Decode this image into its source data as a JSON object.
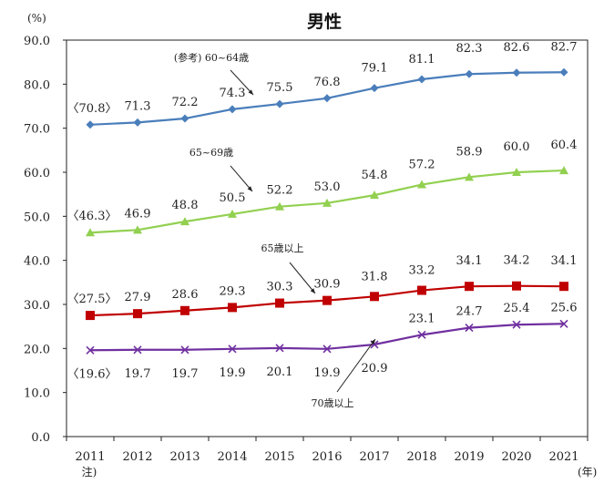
{
  "chart_data": {
    "type": "line",
    "title": "男性",
    "ylabel": "(%)",
    "xlabel": "(年)",
    "ylim": [
      0,
      90
    ],
    "yticks": [
      "0.0",
      "10.0",
      "20.0",
      "30.0",
      "40.0",
      "50.0",
      "60.0",
      "70.0",
      "80.0",
      "90.0"
    ],
    "categories": [
      "2011",
      "2012",
      "2013",
      "2014",
      "2015",
      "2016",
      "2017",
      "2018",
      "2019",
      "2020",
      "2021"
    ],
    "category_note": "注)",
    "grid": false,
    "series": [
      {
        "name": "(参考) 60~64歳",
        "color": "#4a7ebb",
        "marker": "diamond",
        "values": [
          70.8,
          71.3,
          72.2,
          74.3,
          75.5,
          76.8,
          79.1,
          81.1,
          82.3,
          82.6,
          82.7
        ],
        "labels": [
          "〈70.8〉",
          "71.3",
          "72.2",
          "74.3",
          "75.5",
          "76.8",
          "79.1",
          "81.1",
          "82.3",
          "82.6",
          "82.7"
        ]
      },
      {
        "name": "65~69歳",
        "color": "#92d050",
        "marker": "triangle",
        "values": [
          46.3,
          46.9,
          48.8,
          50.5,
          52.2,
          53.0,
          54.8,
          57.2,
          58.9,
          60.0,
          60.4
        ],
        "labels": [
          "〈46.3〉",
          "46.9",
          "48.8",
          "50.5",
          "52.2",
          "53.0",
          "54.8",
          "57.2",
          "58.9",
          "60.0",
          "60.4"
        ]
      },
      {
        "name": "65歳以上",
        "color": "#c00000",
        "marker": "square",
        "values": [
          27.5,
          27.9,
          28.6,
          29.3,
          30.3,
          30.9,
          31.8,
          33.2,
          34.1,
          34.2,
          34.1
        ],
        "labels": [
          "〈27.5〉",
          "27.9",
          "28.6",
          "29.3",
          "30.3",
          "30.9",
          "31.8",
          "33.2",
          "34.1",
          "34.2",
          "34.1"
        ]
      },
      {
        "name": "70歳以上",
        "color": "#7030a0",
        "marker": "x",
        "values": [
          19.6,
          19.7,
          19.7,
          19.9,
          20.1,
          19.9,
          20.9,
          23.1,
          24.7,
          25.4,
          25.6
        ],
        "labels": [
          "〈19.6〉",
          "19.7",
          "19.7",
          "19.9",
          "20.1",
          "19.9",
          "20.9",
          "23.1",
          "24.7",
          "25.4",
          "25.6"
        ]
      }
    ]
  }
}
